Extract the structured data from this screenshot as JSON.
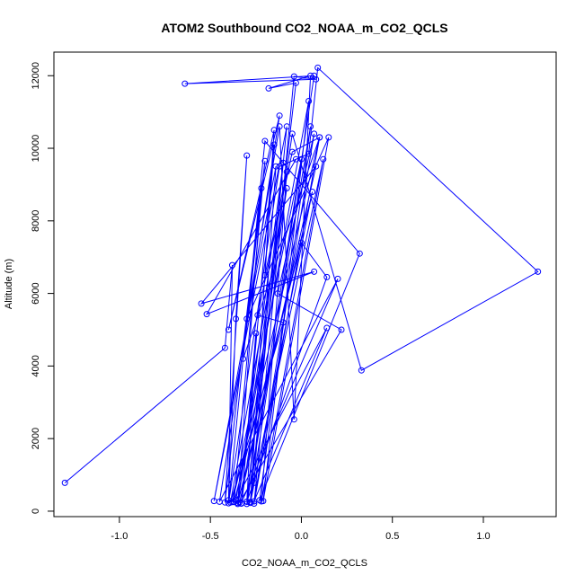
{
  "chart_data": {
    "type": "scatter",
    "title": "ATOM2 Southbound CO2_NOAA_m_CO2_QCLS",
    "xlabel": "CO2_NOAA_m_CO2_QCLS",
    "ylabel": "Altitude (m)",
    "xlim": [
      -1.36,
      1.4
    ],
    "ylim": [
      -150,
      12650
    ],
    "xticks": [
      -1.0,
      -0.5,
      0.0,
      0.5,
      1.0
    ],
    "xtick_labels": [
      "-1.0",
      "-0.5",
      "0.0",
      "0.5",
      "1.0"
    ],
    "yticks": [
      0,
      2000,
      4000,
      6000,
      8000,
      10000,
      12000
    ],
    "ytick_labels": [
      "0",
      "2000",
      "4000",
      "6000",
      "8000",
      "10000",
      "12000"
    ],
    "grid": false,
    "legend": "none",
    "color": "#0000ff",
    "markers": "open-circle",
    "connected": true,
    "series": [
      {
        "points": [
          [
            -1.3,
            780
          ],
          [
            -0.42,
            4500
          ],
          [
            -0.38,
            6780
          ],
          [
            -0.4,
            300
          ],
          [
            -0.36,
            5300
          ],
          [
            -0.3,
            9800
          ],
          [
            -0.42,
            240
          ],
          [
            -0.22,
            8900
          ],
          [
            -0.35,
            230
          ],
          [
            -0.1,
            9600
          ],
          [
            -0.3,
            260
          ],
          [
            -0.25,
            4900
          ],
          [
            -0.33,
            220
          ],
          [
            0.2,
            6400
          ],
          [
            -0.45,
            260
          ],
          [
            -0.12,
            10900
          ],
          [
            -0.4,
            5000
          ],
          [
            -0.15,
            10500
          ],
          [
            -0.28,
            250
          ],
          [
            0.07,
            12000
          ],
          [
            -0.64,
            11780
          ],
          [
            0.08,
            11900
          ],
          [
            -0.04,
            11980
          ],
          [
            -0.26,
            210
          ],
          [
            0.1,
            10300
          ],
          [
            -0.38,
            250
          ],
          [
            0.0,
            9700
          ],
          [
            -0.3,
            200
          ],
          [
            0.05,
            10600
          ],
          [
            -0.23,
            300
          ],
          [
            0.32,
            7100
          ],
          [
            -0.2,
            10200
          ],
          [
            -0.4,
            220
          ],
          [
            -0.12,
            9500
          ],
          [
            0.04,
            9850
          ],
          [
            0.09,
            12220
          ],
          [
            1.3,
            6600
          ],
          [
            0.33,
            3880
          ],
          [
            -0.05,
            10400
          ],
          [
            -0.35,
            200
          ],
          [
            0.06,
            8800
          ],
          [
            -0.28,
            230
          ],
          [
            -0.08,
            10600
          ],
          [
            -0.48,
            280
          ],
          [
            -0.14,
            9500
          ],
          [
            -0.26,
            780
          ],
          [
            0.12,
            9700
          ],
          [
            -0.22,
            270
          ],
          [
            -0.08,
            9350
          ],
          [
            -0.2,
            6500
          ],
          [
            -0.15,
            10100
          ],
          [
            -0.33,
            210
          ],
          [
            -0.08,
            8900
          ],
          [
            -0.39,
            240
          ],
          [
            -0.1,
            5200
          ],
          [
            -0.24,
            5400
          ],
          [
            -0.05,
            9900
          ],
          [
            0.1,
            10300
          ],
          [
            -0.32,
            4200
          ],
          [
            -0.2,
            9650
          ],
          [
            -0.37,
            250
          ],
          [
            0.0,
            7400
          ],
          [
            0.14,
            6450
          ],
          [
            -0.3,
            260
          ],
          [
            -0.03,
            11800
          ],
          [
            -0.18,
            11650
          ],
          [
            0.05,
            12000
          ],
          [
            -0.04,
            2530
          ],
          [
            -0.12,
            10600
          ],
          [
            -0.3,
            5300
          ],
          [
            0.15,
            10300
          ],
          [
            -0.21,
            280
          ],
          [
            0.04,
            11300
          ],
          [
            -0.36,
            300
          ],
          [
            0.14,
            5050
          ],
          [
            -0.26,
            270
          ],
          [
            0.07,
            10400
          ],
          [
            -0.13,
            6000
          ],
          [
            0.22,
            5000
          ],
          [
            -0.34,
            240
          ],
          [
            0.08,
            9500
          ],
          [
            -0.55,
            5720
          ],
          [
            0.07,
            6600
          ],
          [
            -0.52,
            5430
          ],
          [
            -0.03,
            9700
          ]
        ]
      }
    ]
  }
}
